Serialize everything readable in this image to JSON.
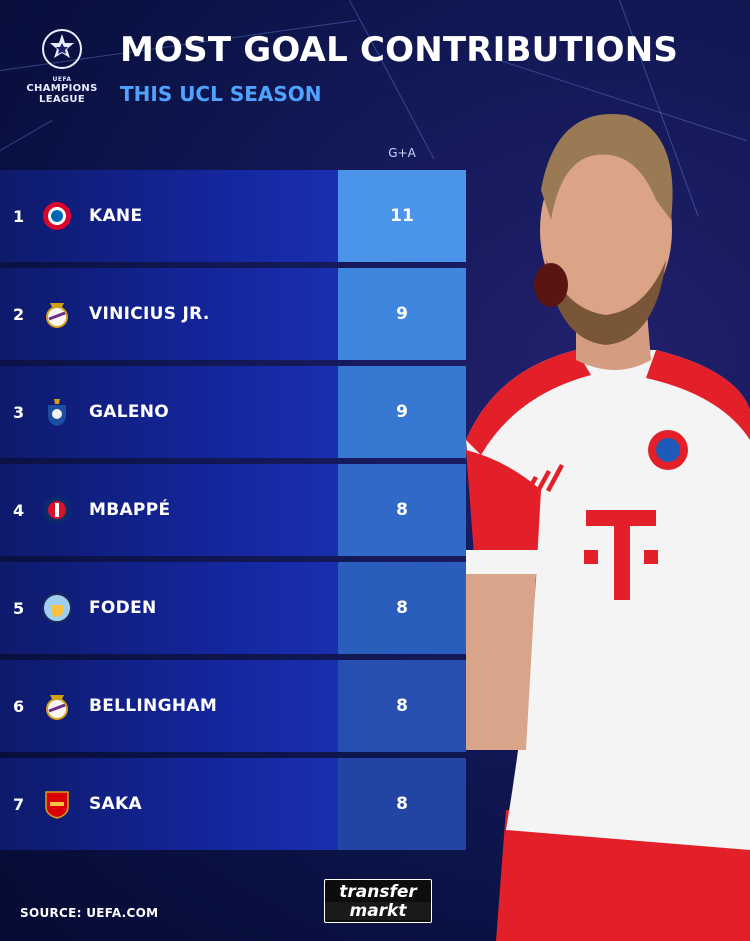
{
  "header": {
    "logo_small": "UEFA",
    "logo_line1": "CHAMPIONS",
    "logo_line2": "LEAGUE",
    "title": "MOST GOAL CONTRIBUTIONS",
    "subtitle": "THIS UCL SEASON"
  },
  "table": {
    "column_header": "G+A",
    "rows": [
      {
        "rank": "1",
        "name": "KANE",
        "value": "11",
        "crest_icon": "bayern-crest-icon",
        "value_color": "#4a95ea"
      },
      {
        "rank": "2",
        "name": "VINICIUS JR.",
        "value": "9",
        "crest_icon": "real-madrid-crest-icon",
        "value_color": "#3f86df"
      },
      {
        "rank": "3",
        "name": "GALENO",
        "value": "9",
        "crest_icon": "porto-crest-icon",
        "value_color": "#3778d3"
      },
      {
        "rank": "4",
        "name": "MBAPPÉ",
        "value": "8",
        "crest_icon": "psg-crest-icon",
        "value_color": "#3069c7"
      },
      {
        "rank": "5",
        "name": "FODEN",
        "value": "8",
        "crest_icon": "man-city-crest-icon",
        "value_color": "#2b5dbc"
      },
      {
        "rank": "6",
        "name": "BELLINGHAM",
        "value": "8",
        "crest_icon": "real-madrid-crest-icon",
        "value_color": "#264fb0"
      },
      {
        "rank": "7",
        "name": "SAKA",
        "value": "8",
        "crest_icon": "arsenal-crest-icon",
        "value_color": "#2244a5"
      }
    ]
  },
  "footer": {
    "source": "SOURCE: UEFA.COM",
    "brand_line1": "transfer",
    "brand_line2": "markt"
  },
  "player_image": {
    "icon": "player-celebration-icon",
    "shirt_color": "#f4f4f4",
    "accent_color": "#e3202a"
  }
}
